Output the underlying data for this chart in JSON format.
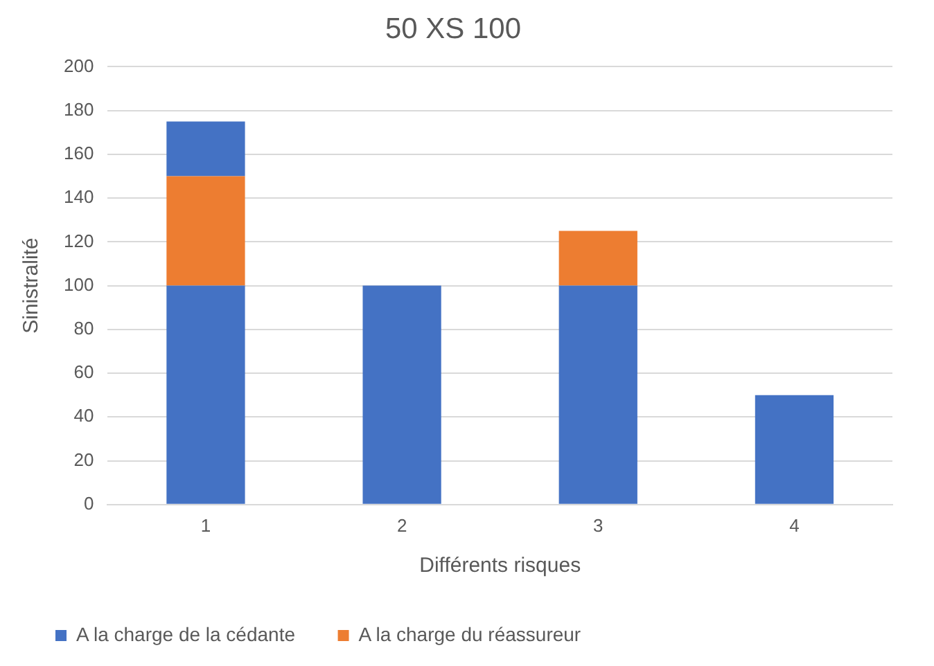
{
  "chart_data": {
    "type": "bar",
    "title": "50 XS 100",
    "xlabel": "Différents risques",
    "ylabel": "Sinistralité",
    "categories": [
      "1",
      "2",
      "3",
      "4"
    ],
    "series": [
      {
        "name": "A la charge de la cédante",
        "color": "#4472c4",
        "values": [
          100,
          100,
          100,
          50
        ]
      },
      {
        "name": "A la charge du réassureur",
        "color": "#ed7d31",
        "values": [
          50,
          0,
          25,
          0
        ]
      },
      {
        "color": "#4472c4",
        "values": [
          25,
          0,
          0,
          0
        ]
      }
    ],
    "stacked": true,
    "ylim": [
      0,
      200
    ],
    "yticks": [
      0,
      20,
      40,
      60,
      80,
      100,
      120,
      140,
      160,
      180,
      200
    ],
    "grid": "y",
    "legend": "bottom left"
  }
}
